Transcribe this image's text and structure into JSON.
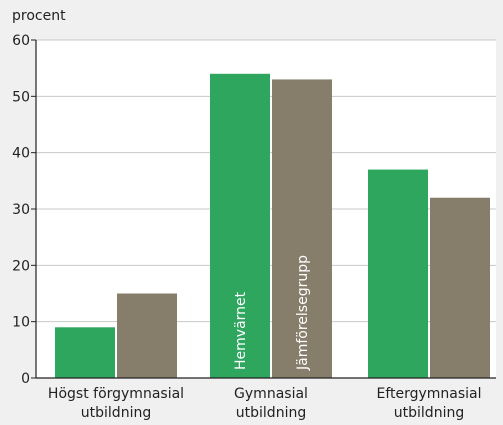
{
  "chart_data": {
    "type": "bar",
    "ylabel": "procent",
    "ylim": [
      0,
      60
    ],
    "yticks": [
      0,
      10,
      20,
      30,
      40,
      50,
      60
    ],
    "categories": [
      [
        "Högst förgymnasial",
        "utbildning"
      ],
      [
        "Gymnasial",
        "utbildning"
      ],
      [
        "Eftergymnasial",
        "utbildning"
      ]
    ],
    "series": [
      {
        "name": "Hemvärnet",
        "color": "#2fa65e",
        "values": [
          9,
          54,
          37
        ]
      },
      {
        "name": "Jämförelsegrupp",
        "color": "#877d6b",
        "values": [
          15,
          53,
          32
        ]
      }
    ],
    "series_labels_on_category": 1,
    "grid": true
  }
}
